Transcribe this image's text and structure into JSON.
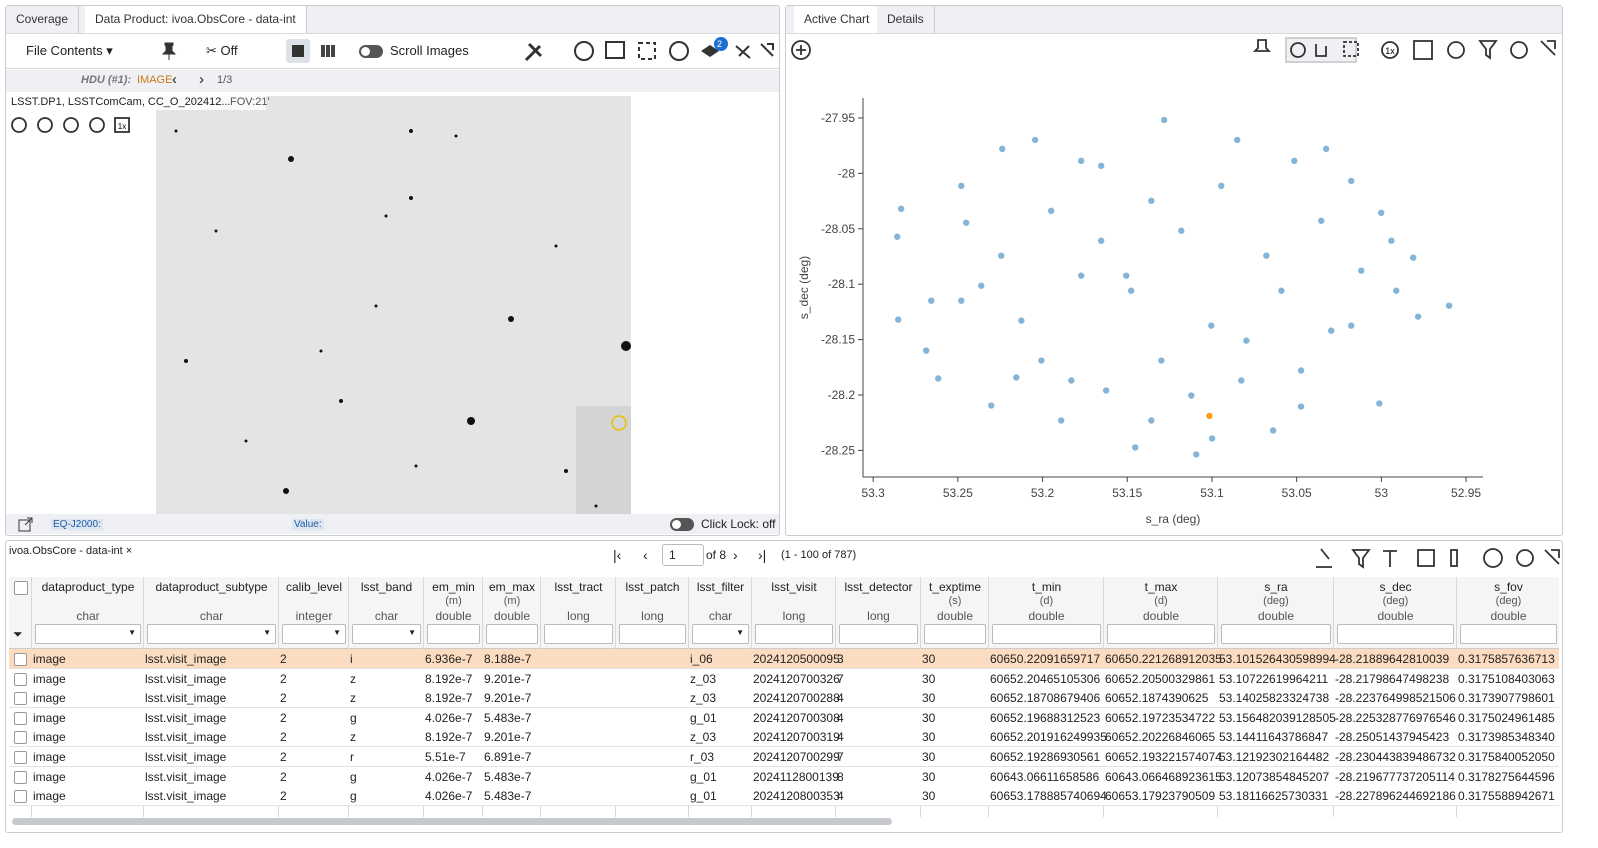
{
  "left_panel": {
    "tabs": [
      "Coverage",
      "Data Product: ivoa.ObsCore - data-int"
    ],
    "toolbar": {
      "file_contents": "File Contents",
      "cut": "Off",
      "scroll_images": "Scroll Images",
      "layers_badge": "2"
    },
    "hdu": {
      "label": "HDU (#1):",
      "type": "IMAGE",
      "page": "1/3"
    },
    "image_title": "LSST.DP1, LSSTComCam, CC_O_202412...",
    "fov": "FOV:21'",
    "zoom_1x": "1x",
    "footer": {
      "coord": "EQ-J2000:",
      "value": "Value:",
      "click_lock": "Click Lock: off"
    }
  },
  "right_panel": {
    "tabs": [
      "Active Chart",
      "Details"
    ],
    "zoom_1x": "1x",
    "chart_data": {
      "type": "scatter",
      "x_label": "s_ra (deg)",
      "y_label": "s_dec (deg)",
      "xlim": [
        53.306,
        52.94
      ],
      "ylim": [
        -28.274,
        -27.932
      ],
      "xticks": [
        53.3,
        53.25,
        53.2,
        53.15,
        53.1,
        53.05,
        53,
        52.95
      ],
      "yticks": [
        -27.95,
        -28,
        -28.05,
        -28.1,
        -28.15,
        -28.2,
        -28.25
      ],
      "series": [
        {
          "color": "#1f77b4",
          "x": [
            53.1282,
            53.2044,
            53.0851,
            53.2238,
            53.0326,
            53.2835,
            53.2858,
            53.2451,
            52.9812,
            52.96,
            52.9783,
            53.2852,
            53.2616,
            53.2155,
            53.1625,
            53.1453,
            53.1093,
            53.0999,
            53.0639,
            53.0474,
            53.0012,
            53.0001,
            53.0178,
            53.0514,
            53.1654,
            53.1506,
            53.1477,
            53.1772,
            53.1949,
            53.1181,
            53.1004,
            53.0797,
            53.0679,
            53.0296,
            53.0178,
            53.2362,
            53.248,
            53.2125,
            53.2007,
            53.183,
            53.1299,
            53.1122,
            53.2244,
            53.1654,
            53.1358,
            53.0945,
            53.059,
            53.0119,
            52.9912,
            53.0474,
            53.2657,
            53.2687,
            53.2303,
            53.189,
            53.1358,
            53.0827,
            53.1772,
            53.248,
            52.9941,
            53.0355
          ],
          "y": [
            -27.9518,
            -27.9698,
            -27.9698,
            -27.9779,
            -27.9779,
            -28.032,
            -28.0572,
            -28.0446,
            -28.0761,
            -28.1194,
            -28.1293,
            -28.132,
            -28.1851,
            -28.1842,
            -28.1959,
            -28.2473,
            -28.2536,
            -28.2392,
            -28.232,
            -28.2104,
            -28.2077,
            -28.0356,
            -28.0068,
            -27.9887,
            -27.9932,
            -28.0923,
            -28.1059,
            -28.0923,
            -28.0338,
            -28.0518,
            -28.1374,
            -28.1509,
            -28.0743,
            -28.1419,
            -28.1374,
            -28.1014,
            -28.1149,
            -28.1329,
            -28.1689,
            -28.1869,
            -28.1689,
            -28.2005,
            -28.0743,
            -28.0608,
            -28.0248,
            -28.0113,
            -28.1059,
            -28.0878,
            -28.1059,
            -28.1779,
            -28.1149,
            -28.1599,
            -28.2095,
            -28.223,
            -28.223,
            -28.1869,
            -27.9887,
            -28.0113,
            -28.0608,
            -28.0428
          ]
        },
        {
          "color": "#ff9e16",
          "x": [
            53.1015
          ],
          "y": [
            -28.2189
          ]
        }
      ]
    }
  },
  "table": {
    "title": "ivoa.ObsCore - data-int",
    "page": "1",
    "of_pages": "of 8",
    "range": "(1 - 100 of 787)",
    "columns": [
      {
        "name": "dataproduct_type",
        "type": "char"
      },
      {
        "name": "dataproduct_subtype",
        "type": "char"
      },
      {
        "name": "calib_level",
        "type": "integer"
      },
      {
        "name": "lsst_band",
        "type": "char"
      },
      {
        "name": "em_min",
        "unit": "(m)",
        "type": "double"
      },
      {
        "name": "em_max",
        "unit": "(m)",
        "type": "double"
      },
      {
        "name": "lsst_tract",
        "type": "long"
      },
      {
        "name": "lsst_patch",
        "type": "long"
      },
      {
        "name": "lsst_filter",
        "type": "char"
      },
      {
        "name": "lsst_visit",
        "type": "long"
      },
      {
        "name": "lsst_detector",
        "type": "long"
      },
      {
        "name": "t_exptime",
        "unit": "(s)",
        "type": "double"
      },
      {
        "name": "t_min",
        "unit": "(d)",
        "type": "double"
      },
      {
        "name": "t_max",
        "unit": "(d)",
        "type": "double"
      },
      {
        "name": "s_ra",
        "unit": "(deg)",
        "type": "double"
      },
      {
        "name": "s_dec",
        "unit": "(deg)",
        "type": "double"
      },
      {
        "name": "s_fov",
        "unit": "(deg)",
        "type": "double"
      }
    ],
    "rows": [
      [
        "image",
        "lsst.visit_image",
        "2",
        "i",
        "6.936e-7",
        "8.188e-7",
        null,
        null,
        "i_06",
        "2024120500095",
        "3",
        "30",
        "60650.22091659717",
        "60650.221268912035",
        "53.101526430598994",
        "-28.21889642810039",
        "0.3175857636713"
      ],
      [
        "image",
        "lsst.visit_image",
        "2",
        "z",
        "8.192e-7",
        "9.201e-7",
        null,
        null,
        "z_03",
        "2024120700326",
        "7",
        "30",
        "60652.20465105306",
        "60652.20500329861",
        "53.10722619964211",
        "-28.21798647498238",
        "0.3175108403063"
      ],
      [
        "image",
        "lsst.visit_image",
        "2",
        "z",
        "8.192e-7",
        "9.201e-7",
        null,
        null,
        "z_03",
        "2024120700288",
        "4",
        "30",
        "60652.18708679406",
        "60652.1874390625",
        "53.14025823324738",
        "-28.223764998521506",
        "0.3173907798601"
      ],
      [
        "image",
        "lsst.visit_image",
        "2",
        "g",
        "4.026e-7",
        "5.483e-7",
        null,
        null,
        "g_01",
        "2024120700308",
        "4",
        "30",
        "60652.19688312523",
        "60652.19723534722",
        "53.156482039128505",
        "-28.225328776976546",
        "0.3175024961485"
      ],
      [
        "image",
        "lsst.visit_image",
        "2",
        "z",
        "8.192e-7",
        "9.201e-7",
        null,
        null,
        "z_03",
        "2024120700319",
        "4",
        "30",
        "60652.201916249935",
        "60652.20226846065",
        "53.14411643786847",
        "-28.25051437945423",
        "0.3173985348340"
      ],
      [
        "image",
        "lsst.visit_image",
        "2",
        "r",
        "5.51e-7",
        "6.891e-7",
        null,
        null,
        "r_03",
        "2024120700299",
        "7",
        "30",
        "60652.19286930561",
        "60652.193221574074",
        "53.12192302164482",
        "-28.230443839486732",
        "0.3175840052050"
      ],
      [
        "image",
        "lsst.visit_image",
        "2",
        "g",
        "4.026e-7",
        "5.483e-7",
        null,
        null,
        "g_01",
        "2024112800139",
        "8",
        "30",
        "60643.06611658586",
        "60643.066468923615",
        "53.12073854845207",
        "-28.219677737205114",
        "0.3178275644596"
      ],
      [
        "image",
        "lsst.visit_image",
        "2",
        "g",
        "4.026e-7",
        "5.483e-7",
        null,
        null,
        "g_01",
        "2024120800353",
        "4",
        "30",
        "60653.178885740694",
        "60653.17923790509",
        "53.18116625730331",
        "-28.227896244692186",
        "0.3175588942671"
      ]
    ]
  }
}
